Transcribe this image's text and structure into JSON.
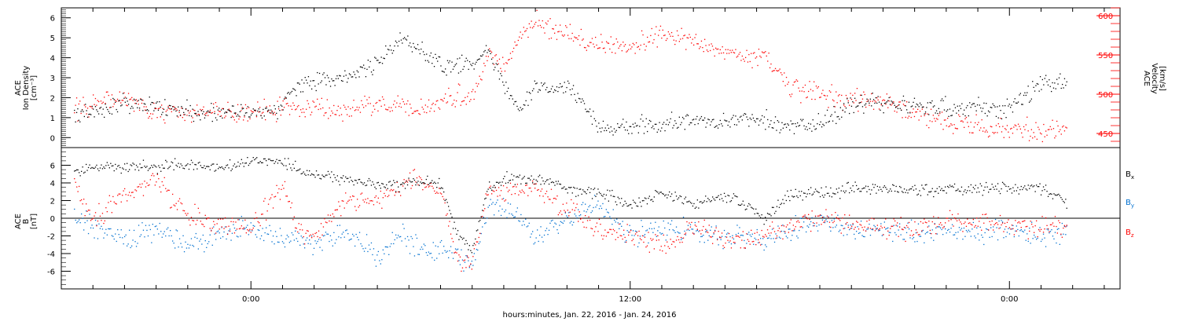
{
  "chart_data": [
    {
      "type": "scatter",
      "panel": "top",
      "ylabel_left": [
        "ACE",
        "Ion Density",
        "[cm⁻³]"
      ],
      "ylabel_right": [
        "ACE",
        "Velocity",
        "[km/s]"
      ],
      "ylim_left": [
        -0.5,
        6.5
      ],
      "ylim_right": [
        432,
        610
      ],
      "yticks_left": [
        "0",
        "1",
        "2",
        "3",
        "4",
        "5",
        "6"
      ],
      "yticks_right": [
        "450",
        "500",
        "550",
        "600"
      ],
      "colors": {
        "density": "#000000",
        "velocity": "#ff0000"
      },
      "x_hours": [
        -5.6,
        -5,
        -4,
        -3,
        -2,
        -1,
        0,
        1,
        1.5,
        2,
        3,
        4,
        4.8,
        5,
        6,
        7,
        7.5,
        8,
        8.5,
        9,
        10,
        11,
        12,
        13,
        14,
        15,
        16,
        16.2,
        17,
        18,
        19,
        20,
        21,
        22,
        23,
        23.2,
        24,
        25,
        25.8
      ],
      "series": [
        {
          "name": "Ion Density",
          "axis": "left",
          "values": [
            1.2,
            1.3,
            1.8,
            1.6,
            1.4,
            1.2,
            1.3,
            1.6,
            2.8,
            2.8,
            3.0,
            3.8,
            5.0,
            4.8,
            3.6,
            3.8,
            4.3,
            2.5,
            1.4,
            2.5,
            2.6,
            0.6,
            0.5,
            0.7,
            0.8,
            0.8,
            0.9,
            1.0,
            0.5,
            0.7,
            1.7,
            1.7,
            1.6,
            1.5,
            1.6,
            1.5,
            1.5,
            2.8,
            2.8
          ]
        },
        {
          "name": "Velocity",
          "axis": "right",
          "values": [
            480,
            490,
            495,
            478,
            475,
            478,
            480,
            482,
            485,
            482,
            480,
            485,
            483,
            480,
            490,
            500,
            555,
            535,
            575,
            595,
            575,
            565,
            560,
            575,
            570,
            555,
            545,
            550,
            510,
            500,
            495,
            490,
            475,
            462,
            462,
            455,
            455,
            455,
            455
          ]
        }
      ]
    },
    {
      "type": "scatter",
      "panel": "bottom",
      "ylabel": [
        "ACE",
        "B",
        "[nT]"
      ],
      "ylim": [
        -8,
        8
      ],
      "yticks": [
        "-6",
        "-4",
        "-2",
        "0",
        "2",
        "4",
        "6"
      ],
      "legend": [
        "Bx",
        "By",
        "Bz"
      ],
      "legend_placement": "right",
      "colors": {
        "Bx": "#000000",
        "By": "#0070d0",
        "Bz": "#ff0000"
      },
      "x_hours": [
        -5.6,
        -5,
        -4,
        -3,
        -2,
        -1,
        0,
        1,
        1.5,
        2,
        3,
        4,
        4.8,
        5,
        6,
        6.5,
        7,
        7.5,
        8,
        9,
        10,
        11,
        12,
        13,
        14,
        15,
        16,
        16.2,
        17,
        18,
        19,
        20,
        21,
        22,
        23,
        23.2,
        24,
        25,
        25.8
      ],
      "series": [
        {
          "name": "Bx",
          "values": [
            5.2,
            6.0,
            5.8,
            6.0,
            6.0,
            5.6,
            6.5,
            6.3,
            5.5,
            5.0,
            4.5,
            4.0,
            3.5,
            4.3,
            4.0,
            -1.8,
            -3.5,
            3.5,
            4.5,
            4.5,
            3.5,
            3.0,
            1.5,
            3.0,
            1.6,
            2.5,
            1.0,
            0.0,
            2.6,
            2.8,
            3.5,
            3.5,
            3.2,
            3.2,
            3.5,
            3.6,
            3.5,
            3.5,
            2.0
          ]
        },
        {
          "name": "By",
          "values": [
            0.5,
            -1.0,
            -2.5,
            -1.0,
            -3.0,
            -1.5,
            -1.0,
            -2.5,
            -2.0,
            -3.0,
            -1.5,
            -4.0,
            -1.5,
            -3.0,
            -3.5,
            -4.2,
            -5.5,
            1.5,
            1.5,
            -1.8,
            0.0,
            1.5,
            -2.0,
            -1.0,
            -1.5,
            -2.0,
            -2.0,
            -2.5,
            -1.5,
            0.0,
            -1.2,
            -1.5,
            -1.5,
            -1.5,
            -1.5,
            -1.5,
            -1.5,
            -2.0,
            -1.8
          ]
        },
        {
          "name": "Bz",
          "values": [
            3.5,
            0.0,
            3.0,
            4.5,
            0.5,
            -1.0,
            -1.2,
            4.0,
            -1.5,
            -1.8,
            2.0,
            2.0,
            3.5,
            4.5,
            3.0,
            -4.5,
            -5.5,
            3.5,
            3.5,
            3.5,
            1.0,
            -1.0,
            -2.0,
            -3.0,
            -1.0,
            -2.5,
            -2.0,
            -2.0,
            -1.0,
            0.0,
            -0.5,
            -1.0,
            -1.0,
            -0.5,
            -0.5,
            -0.5,
            -1.0,
            -1.0,
            -1.2
          ]
        }
      ]
    }
  ],
  "xaxis": {
    "label": "hours:minutes, Jan. 22, 2016 - Jan. 24, 2016",
    "range_hours": [
      -6,
      27.5
    ],
    "major_ticks": [
      {
        "hour": 0,
        "label": "0:00"
      },
      {
        "hour": 12,
        "label": "12:00"
      },
      {
        "hour": 24,
        "label": "0:00"
      }
    ]
  },
  "legend_labels": [
    {
      "base": "B",
      "sub": "x"
    },
    {
      "base": "B",
      "sub": "y"
    },
    {
      "base": "B",
      "sub": "z"
    }
  ]
}
